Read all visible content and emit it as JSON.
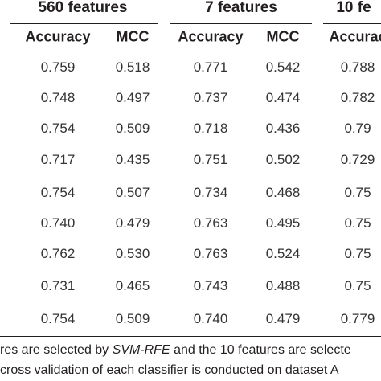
{
  "table": {
    "group_headers": [
      "560 features",
      "7 features",
      "10 fe"
    ],
    "column_headers": [
      "Accuracy",
      "MCC",
      "Accuracy",
      "MCC",
      "Accurac"
    ],
    "rows": [
      [
        "0.759",
        "0.518",
        "0.771",
        "0.542",
        "0.788"
      ],
      [
        "0.748",
        "0.497",
        "0.737",
        "0.474",
        "0.782"
      ],
      [
        "0.754",
        "0.509",
        "0.718",
        "0.436",
        "0.79"
      ],
      [
        "0.717",
        "0.435",
        "0.751",
        "0.502",
        "0.729"
      ],
      [
        "0.754",
        "0.507",
        "0.734",
        "0.468",
        "0.75"
      ],
      [
        "0.740",
        "0.479",
        "0.763",
        "0.495",
        "0.75"
      ],
      [
        "0.762",
        "0.530",
        "0.763",
        "0.524",
        "0.75"
      ],
      [
        "0.731",
        "0.465",
        "0.743",
        "0.488",
        "0.75"
      ],
      [
        "0.754",
        "0.509",
        "0.740",
        "0.479",
        "0.779"
      ]
    ]
  },
  "footnote": {
    "lines": [
      [
        "res are selected by ",
        "SVM-RFE",
        " and the 10 features are selecte"
      ],
      [
        "cross validation of each classifier is conducted on dataset A"
      ]
    ]
  }
}
